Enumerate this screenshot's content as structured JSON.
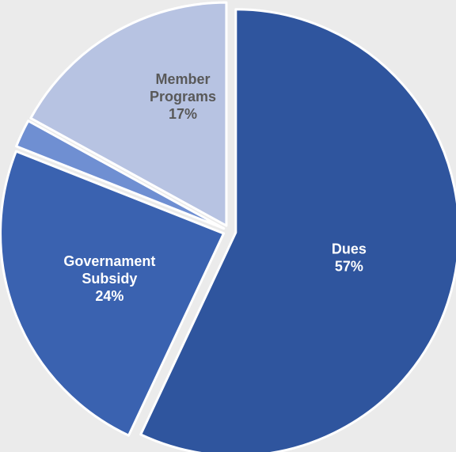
{
  "chart_data": {
    "type": "pie",
    "slices": [
      {
        "label_lines": [
          "Dues"
        ],
        "value": 57,
        "value_label": "57%",
        "color": "#2f559e",
        "label_color": "#ffffff"
      },
      {
        "label_lines": [
          "Governament",
          "Subsidy"
        ],
        "value": 24,
        "value_label": "24%",
        "color": "#3a62b0",
        "label_color": "#ffffff"
      },
      {
        "label_lines": [],
        "value": 2,
        "value_label": "",
        "color": "#6f8fd2",
        "label_color": "#ffffff"
      },
      {
        "label_lines": [
          "Member",
          "Programs"
        ],
        "value": 17,
        "value_label": "17%",
        "color": "#b7c3e2",
        "label_color": "#595959"
      }
    ],
    "start_angle_deg": 0,
    "direction": "clockwise",
    "exploded": true,
    "legend": "none",
    "background": "#ebebeb"
  }
}
